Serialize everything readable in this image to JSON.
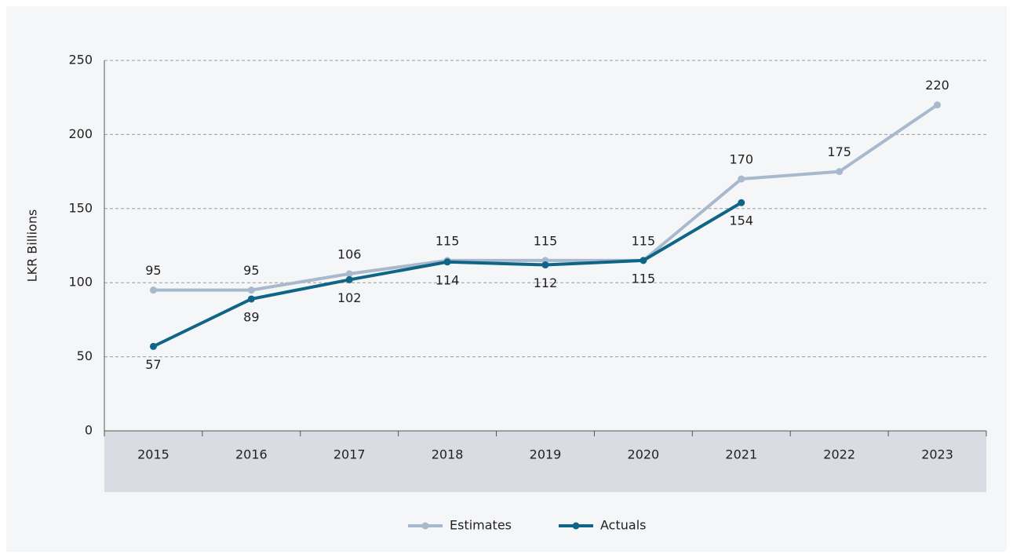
{
  "chart_data": {
    "type": "line",
    "y_label": "LKR Billions",
    "categories": [
      "2015",
      "2016",
      "2017",
      "2018",
      "2019",
      "2020",
      "2021",
      "2022",
      "2023"
    ],
    "series": [
      {
        "name": "Estimates",
        "color": "#a9b9cd",
        "values": [
          95,
          95,
          106,
          115,
          115,
          115,
          170,
          175,
          220
        ]
      },
      {
        "name": "Actuals",
        "color": "#0f6586",
        "values": [
          57,
          89,
          102,
          114,
          112,
          115,
          154,
          null,
          null
        ]
      }
    ],
    "ylim": [
      0,
      250
    ],
    "yticks": [
      0,
      50,
      100,
      150,
      200,
      250
    ],
    "grid": true,
    "legend": "bottom"
  }
}
